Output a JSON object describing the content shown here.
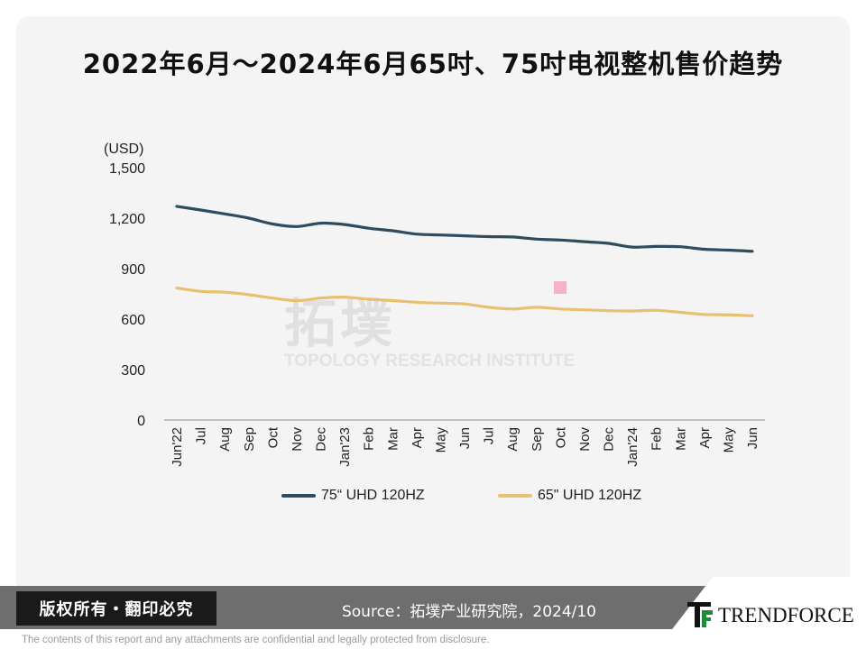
{
  "title": "2022年6月～2024年6月65吋、75吋电视整机售价趋势",
  "watermark": {
    "cn": "拓墣",
    "en": "TOPOLOGY RESEARCH INSTITUTE"
  },
  "footer": {
    "rights": "版权所有・翻印必究",
    "source": "Source：拓墣产业研究院，2024/10",
    "brand": "TRENDFORCE",
    "disclaimer": "The contents of this report and any attachments are confidential and legally protected from disclosure."
  },
  "colors": {
    "series_75": "#2f4b5e",
    "series_65": "#e8c170",
    "axis": "#888888",
    "footer": "#6e6e6e",
    "logo_green": "#1f8a3c",
    "marker": "#f6b3c8"
  },
  "chart_data": {
    "type": "line",
    "title": "",
    "xlabel": "",
    "ylabel": "(USD)",
    "ylim": [
      0,
      1500
    ],
    "yticks": [
      "0",
      "300",
      "600",
      "900",
      "1,200",
      "1,500"
    ],
    "ytick_values": [
      0,
      300,
      600,
      900,
      1200,
      1500
    ],
    "grid": false,
    "legend_position": "bottom",
    "categories": [
      "Jun'22",
      "Jul",
      "Aug",
      "Sep",
      "Oct",
      "Nov",
      "Dec",
      "Jan'23",
      "Feb",
      "Mar",
      "Apr",
      "May",
      "Jun",
      "Jul",
      "Aug",
      "Sep",
      "Oct",
      "Nov",
      "Dec",
      "Jan'24",
      "Feb",
      "Mar",
      "Apr",
      "May",
      "Jun"
    ],
    "series": [
      {
        "name": "75“ UHD 120HZ",
        "color": "#2f4b5e",
        "values": [
          1270,
          1248,
          1225,
          1200,
          1165,
          1150,
          1170,
          1162,
          1140,
          1125,
          1105,
          1100,
          1095,
          1090,
          1088,
          1075,
          1070,
          1060,
          1050,
          1028,
          1032,
          1030,
          1015,
          1010,
          1003
        ]
      },
      {
        "name": "65\" UHD 120HZ",
        "color": "#e8c170",
        "values": [
          785,
          765,
          760,
          745,
          725,
          710,
          725,
          730,
          718,
          710,
          700,
          695,
          690,
          670,
          660,
          670,
          660,
          655,
          650,
          648,
          652,
          640,
          628,
          625,
          620
        ]
      }
    ]
  }
}
